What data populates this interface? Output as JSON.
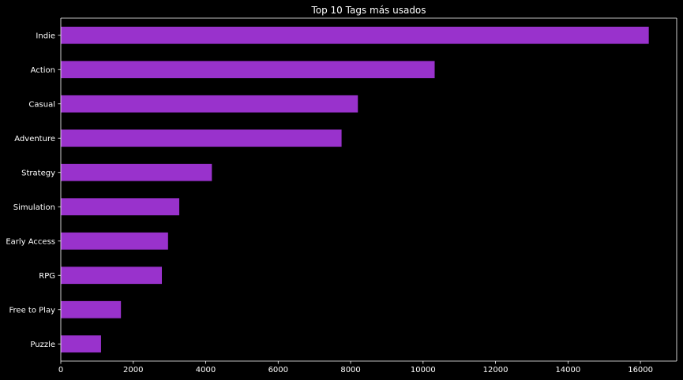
{
  "chart_data": {
    "type": "bar",
    "orientation": "horizontal",
    "title": "Top 10 Tags más usados",
    "xlabel": "",
    "ylabel": "",
    "categories": [
      "Indie",
      "Action",
      "Casual",
      "Adventure",
      "Strategy",
      "Simulation",
      "Early Access",
      "RPG",
      "Free to Play",
      "Puzzle"
    ],
    "values": [
      16230,
      10320,
      8200,
      7750,
      4170,
      3270,
      2960,
      2790,
      1660,
      1110
    ],
    "xlim": [
      0,
      17000
    ],
    "xticks": [
      0,
      2000,
      4000,
      6000,
      8000,
      10000,
      12000,
      14000,
      16000
    ],
    "grid": false,
    "legend": "none",
    "colors": {
      "bar": "#9932CC",
      "background": "#000000",
      "text": "#ffffff",
      "axis": "#ffffff"
    }
  }
}
